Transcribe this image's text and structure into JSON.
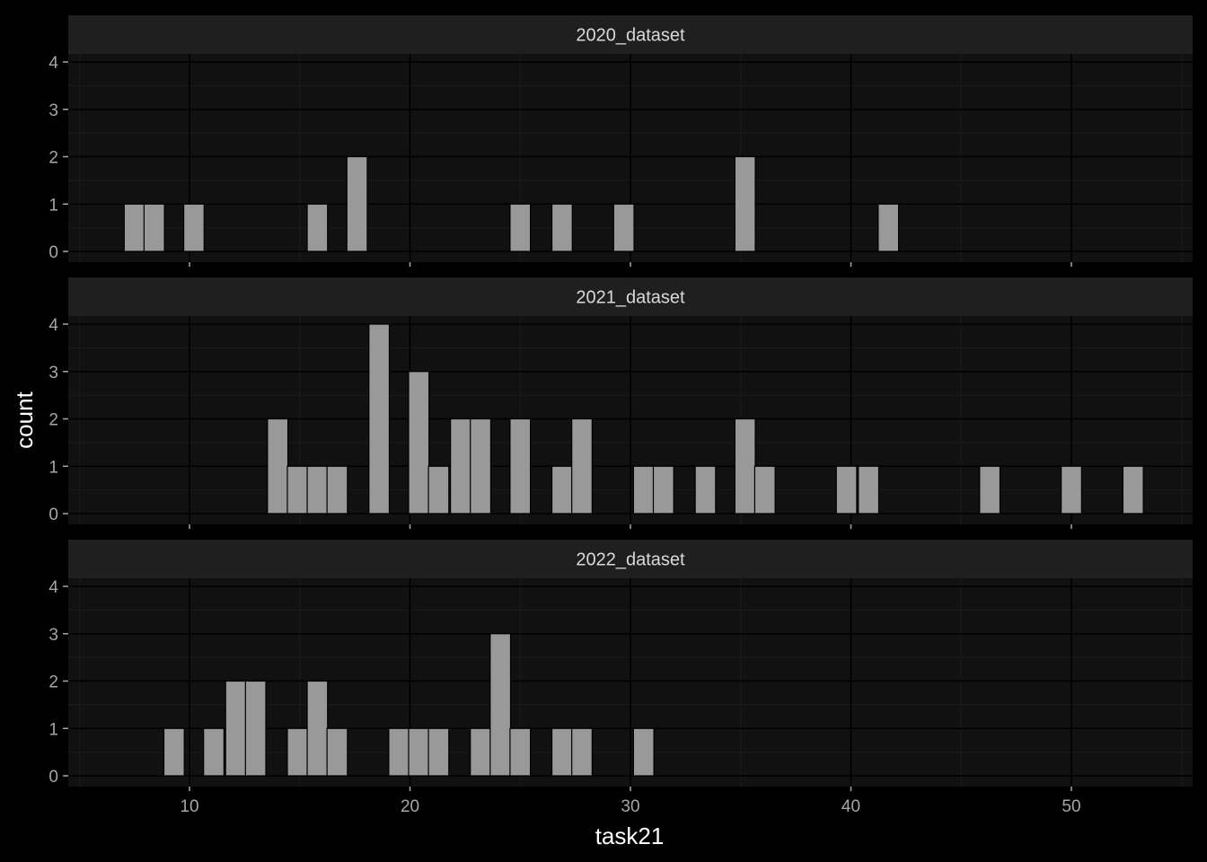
{
  "chart_data": {
    "type": "bar",
    "subtype": "faceted-histogram",
    "xlabel": "task21",
    "ylabel": "count",
    "xlim": [
      4.5,
      55.5
    ],
    "ylim": [
      0,
      4
    ],
    "x_ticks": [
      10,
      20,
      30,
      40,
      50
    ],
    "y_ticks": [
      0,
      1,
      2,
      3,
      4
    ],
    "bin_width": 0.925,
    "grid": true,
    "colors": {
      "background": "#000000",
      "panel": "#111111",
      "strip": "#1f1f1f",
      "bar_fill": "#999999",
      "bar_stroke": "#000000",
      "grid_major": "#000000",
      "grid_minor": "#1c1c1c"
    },
    "facets": [
      {
        "name": "2020_dataset",
        "bins": [
          {
            "x": 7.5,
            "count": 1
          },
          {
            "x": 8.4,
            "count": 1
          },
          {
            "x": 10.2,
            "count": 1
          },
          {
            "x": 15.8,
            "count": 1
          },
          {
            "x": 17.6,
            "count": 2
          },
          {
            "x": 25.0,
            "count": 1
          },
          {
            "x": 26.9,
            "count": 1
          },
          {
            "x": 29.7,
            "count": 1
          },
          {
            "x": 35.2,
            "count": 2
          },
          {
            "x": 41.7,
            "count": 1
          }
        ]
      },
      {
        "name": "2021_dataset",
        "bins": [
          {
            "x": 14.0,
            "count": 2
          },
          {
            "x": 14.9,
            "count": 1
          },
          {
            "x": 15.8,
            "count": 1
          },
          {
            "x": 16.7,
            "count": 1
          },
          {
            "x": 18.6,
            "count": 4
          },
          {
            "x": 20.4,
            "count": 3
          },
          {
            "x": 21.3,
            "count": 1
          },
          {
            "x": 22.3,
            "count": 2
          },
          {
            "x": 23.2,
            "count": 2
          },
          {
            "x": 25.0,
            "count": 2
          },
          {
            "x": 26.9,
            "count": 1
          },
          {
            "x": 27.8,
            "count": 2
          },
          {
            "x": 30.6,
            "count": 1
          },
          {
            "x": 31.5,
            "count": 1
          },
          {
            "x": 33.4,
            "count": 1
          },
          {
            "x": 35.2,
            "count": 2
          },
          {
            "x": 36.1,
            "count": 1
          },
          {
            "x": 39.8,
            "count": 1
          },
          {
            "x": 40.8,
            "count": 1
          },
          {
            "x": 46.3,
            "count": 1
          },
          {
            "x": 50.0,
            "count": 1
          },
          {
            "x": 52.8,
            "count": 1
          }
        ]
      },
      {
        "name": "2022_dataset",
        "bins": [
          {
            "x": 9.3,
            "count": 1
          },
          {
            "x": 11.1,
            "count": 1
          },
          {
            "x": 12.1,
            "count": 2
          },
          {
            "x": 13.0,
            "count": 2
          },
          {
            "x": 14.9,
            "count": 1
          },
          {
            "x": 15.8,
            "count": 2
          },
          {
            "x": 16.7,
            "count": 1
          },
          {
            "x": 19.5,
            "count": 1
          },
          {
            "x": 20.4,
            "count": 1
          },
          {
            "x": 21.3,
            "count": 1
          },
          {
            "x": 23.2,
            "count": 1
          },
          {
            "x": 24.1,
            "count": 3
          },
          {
            "x": 25.0,
            "count": 1
          },
          {
            "x": 26.9,
            "count": 1
          },
          {
            "x": 27.8,
            "count": 1
          },
          {
            "x": 30.6,
            "count": 1
          }
        ]
      }
    ]
  }
}
